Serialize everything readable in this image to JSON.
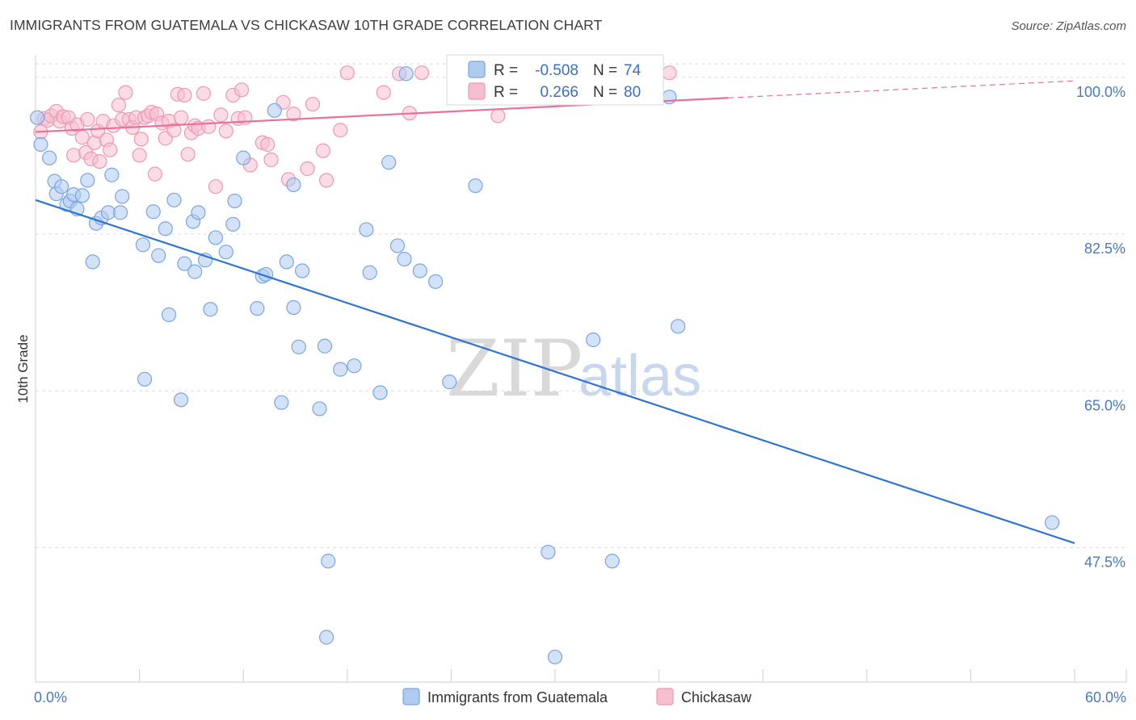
{
  "title": "IMMIGRANTS FROM GUATEMALA VS CHICKASAW 10TH GRADE CORRELATION CHART",
  "source": "Source: ZipAtlas.com",
  "watermark": {
    "zip": "ZIP",
    "atlas": "atlas"
  },
  "colors": {
    "blue_fill": "#aecbf0",
    "blue_stroke": "#7aa6e0",
    "blue_line": "#2f74d0",
    "pink_fill": "#f6bfd0",
    "pink_stroke": "#ee98b5",
    "pink_line": "#e8709a",
    "tick_text": "#4a78c4",
    "grid": "#dddddd"
  },
  "legend": {
    "r_label": "R =",
    "n_label": "N =",
    "rows": [
      {
        "r": "-0.508",
        "n": "74"
      },
      {
        "r": "0.266",
        "n": "80"
      }
    ]
  },
  "chart_data": {
    "type": "scatter",
    "title": "IMMIGRANTS FROM GUATEMALA VS CHICKASAW 10TH GRADE CORRELATION CHART",
    "xlabel": "",
    "ylabel": "10th Grade",
    "x_tick_labels": [
      "0.0%",
      "60.0%"
    ],
    "y_tick_labels": [
      "100.0%",
      "82.5%",
      "65.0%",
      "47.5%"
    ],
    "y_ticks": [
      100,
      82.5,
      65,
      47.5
    ],
    "xlim": [
      0,
      60
    ],
    "ylim": [
      32.5,
      102.5
    ],
    "grid": true,
    "legend_position": "bottom",
    "series": [
      {
        "name": "Immigrants from Guatemala",
        "r": -0.508,
        "n": 74,
        "trend": {
          "x": [
            0,
            60
          ],
          "y": [
            86.3,
            48.0
          ]
        },
        "points": [
          [
            0.1,
            95.5
          ],
          [
            0.3,
            92.5
          ],
          [
            0.8,
            91.0
          ],
          [
            1.1,
            88.4
          ],
          [
            1.2,
            87.0
          ],
          [
            1.5,
            87.8
          ],
          [
            1.8,
            85.8
          ],
          [
            2.0,
            86.2
          ],
          [
            2.2,
            86.9
          ],
          [
            2.4,
            85.3
          ],
          [
            2.7,
            86.8
          ],
          [
            3.0,
            88.5
          ],
          [
            3.3,
            79.4
          ],
          [
            3.5,
            83.7
          ],
          [
            3.8,
            84.3
          ],
          [
            4.2,
            84.9
          ],
          [
            4.4,
            89.1
          ],
          [
            4.9,
            84.9
          ],
          [
            5.0,
            86.7
          ],
          [
            6.2,
            81.3
          ],
          [
            6.3,
            66.3
          ],
          [
            6.8,
            85.0
          ],
          [
            7.1,
            80.1
          ],
          [
            7.5,
            83.1
          ],
          [
            7.7,
            73.5
          ],
          [
            8.0,
            86.3
          ],
          [
            8.4,
            64.0
          ],
          [
            8.6,
            79.2
          ],
          [
            9.1,
            83.9
          ],
          [
            9.2,
            78.3
          ],
          [
            9.4,
            84.9
          ],
          [
            9.8,
            79.6
          ],
          [
            10.1,
            74.1
          ],
          [
            10.4,
            82.1
          ],
          [
            11.0,
            80.5
          ],
          [
            11.4,
            83.6
          ],
          [
            11.5,
            86.2
          ],
          [
            12.0,
            91.0
          ],
          [
            12.8,
            74.2
          ],
          [
            13.1,
            77.8
          ],
          [
            13.3,
            78.0
          ],
          [
            13.8,
            96.3
          ],
          [
            14.2,
            63.7
          ],
          [
            14.5,
            79.4
          ],
          [
            14.9,
            74.3
          ],
          [
            14.9,
            88.0
          ],
          [
            15.2,
            69.9
          ],
          [
            15.4,
            78.4
          ],
          [
            16.4,
            63.0
          ],
          [
            16.7,
            70.0
          ],
          [
            16.8,
            37.5
          ],
          [
            16.9,
            46.0
          ],
          [
            17.6,
            67.4
          ],
          [
            18.4,
            67.8
          ],
          [
            19.1,
            83.0
          ],
          [
            19.3,
            78.2
          ],
          [
            19.9,
            64.8
          ],
          [
            20.4,
            90.5
          ],
          [
            20.9,
            81.2
          ],
          [
            21.3,
            79.7
          ],
          [
            21.4,
            100.4
          ],
          [
            22.2,
            78.4
          ],
          [
            23.1,
            77.2
          ],
          [
            23.9,
            66.0
          ],
          [
            25.4,
            87.9
          ],
          [
            29.6,
            47.0
          ],
          [
            30.0,
            35.3
          ],
          [
            32.2,
            70.7
          ],
          [
            33.3,
            46.0
          ],
          [
            36.6,
            97.8
          ],
          [
            37.1,
            72.2
          ],
          [
            58.7,
            50.3
          ]
        ]
      },
      {
        "name": "Chickasaw",
        "r": 0.266,
        "n": 80,
        "trend": {
          "x": [
            0,
            40
          ],
          "y": [
            93.9,
            97.7
          ]
        },
        "trend_dashed": {
          "x": [
            40,
            60
          ],
          "y": [
            97.7,
            99.6
          ]
        },
        "points": [
          [
            0.3,
            93.9
          ],
          [
            0.5,
            95.4
          ],
          [
            0.7,
            95.2
          ],
          [
            0.9,
            95.7
          ],
          [
            1.2,
            96.2
          ],
          [
            1.4,
            95.1
          ],
          [
            1.6,
            95.6
          ],
          [
            1.9,
            95.5
          ],
          [
            2.1,
            94.3
          ],
          [
            2.2,
            91.3
          ],
          [
            2.4,
            94.7
          ],
          [
            2.7,
            93.3
          ],
          [
            2.9,
            91.6
          ],
          [
            3.0,
            95.3
          ],
          [
            3.2,
            90.9
          ],
          [
            3.4,
            92.7
          ],
          [
            3.6,
            94.0
          ],
          [
            3.7,
            90.6
          ],
          [
            3.9,
            95.1
          ],
          [
            4.1,
            93.0
          ],
          [
            4.3,
            91.9
          ],
          [
            4.5,
            94.6
          ],
          [
            4.8,
            96.9
          ],
          [
            5.0,
            95.3
          ],
          [
            5.2,
            98.3
          ],
          [
            5.4,
            95.3
          ],
          [
            5.6,
            94.4
          ],
          [
            5.8,
            95.5
          ],
          [
            6.0,
            91.3
          ],
          [
            6.1,
            93.1
          ],
          [
            6.3,
            95.5
          ],
          [
            6.5,
            95.7
          ],
          [
            6.7,
            96.1
          ],
          [
            6.9,
            89.2
          ],
          [
            7.0,
            95.9
          ],
          [
            7.3,
            94.9
          ],
          [
            7.5,
            93.2
          ],
          [
            7.7,
            95.1
          ],
          [
            8.0,
            94.1
          ],
          [
            8.2,
            98.1
          ],
          [
            8.4,
            95.5
          ],
          [
            8.6,
            98.0
          ],
          [
            8.8,
            91.4
          ],
          [
            9.0,
            93.8
          ],
          [
            9.2,
            94.6
          ],
          [
            9.4,
            94.3
          ],
          [
            9.7,
            98.2
          ],
          [
            10.0,
            94.5
          ],
          [
            10.4,
            87.8
          ],
          [
            10.7,
            95.8
          ],
          [
            11.0,
            94.0
          ],
          [
            11.4,
            98.0
          ],
          [
            11.7,
            95.4
          ],
          [
            11.9,
            98.6
          ],
          [
            12.1,
            95.5
          ],
          [
            12.4,
            90.2
          ],
          [
            13.1,
            92.7
          ],
          [
            13.4,
            92.5
          ],
          [
            13.6,
            90.8
          ],
          [
            14.3,
            97.2
          ],
          [
            14.6,
            88.6
          ],
          [
            14.9,
            95.9
          ],
          [
            15.7,
            89.8
          ],
          [
            16.0,
            97.0
          ],
          [
            16.6,
            91.8
          ],
          [
            16.8,
            88.5
          ],
          [
            17.6,
            94.1
          ],
          [
            18.0,
            100.5
          ],
          [
            20.1,
            98.3
          ],
          [
            21.0,
            100.4
          ],
          [
            21.6,
            96.0
          ],
          [
            22.3,
            100.5
          ],
          [
            26.7,
            95.7
          ],
          [
            34.3,
            100.0
          ],
          [
            36.6,
            100.5
          ]
        ]
      }
    ]
  },
  "bottom_legend": {
    "items": [
      {
        "label": "Immigrants from Guatemala"
      },
      {
        "label": "Chickasaw"
      }
    ]
  }
}
